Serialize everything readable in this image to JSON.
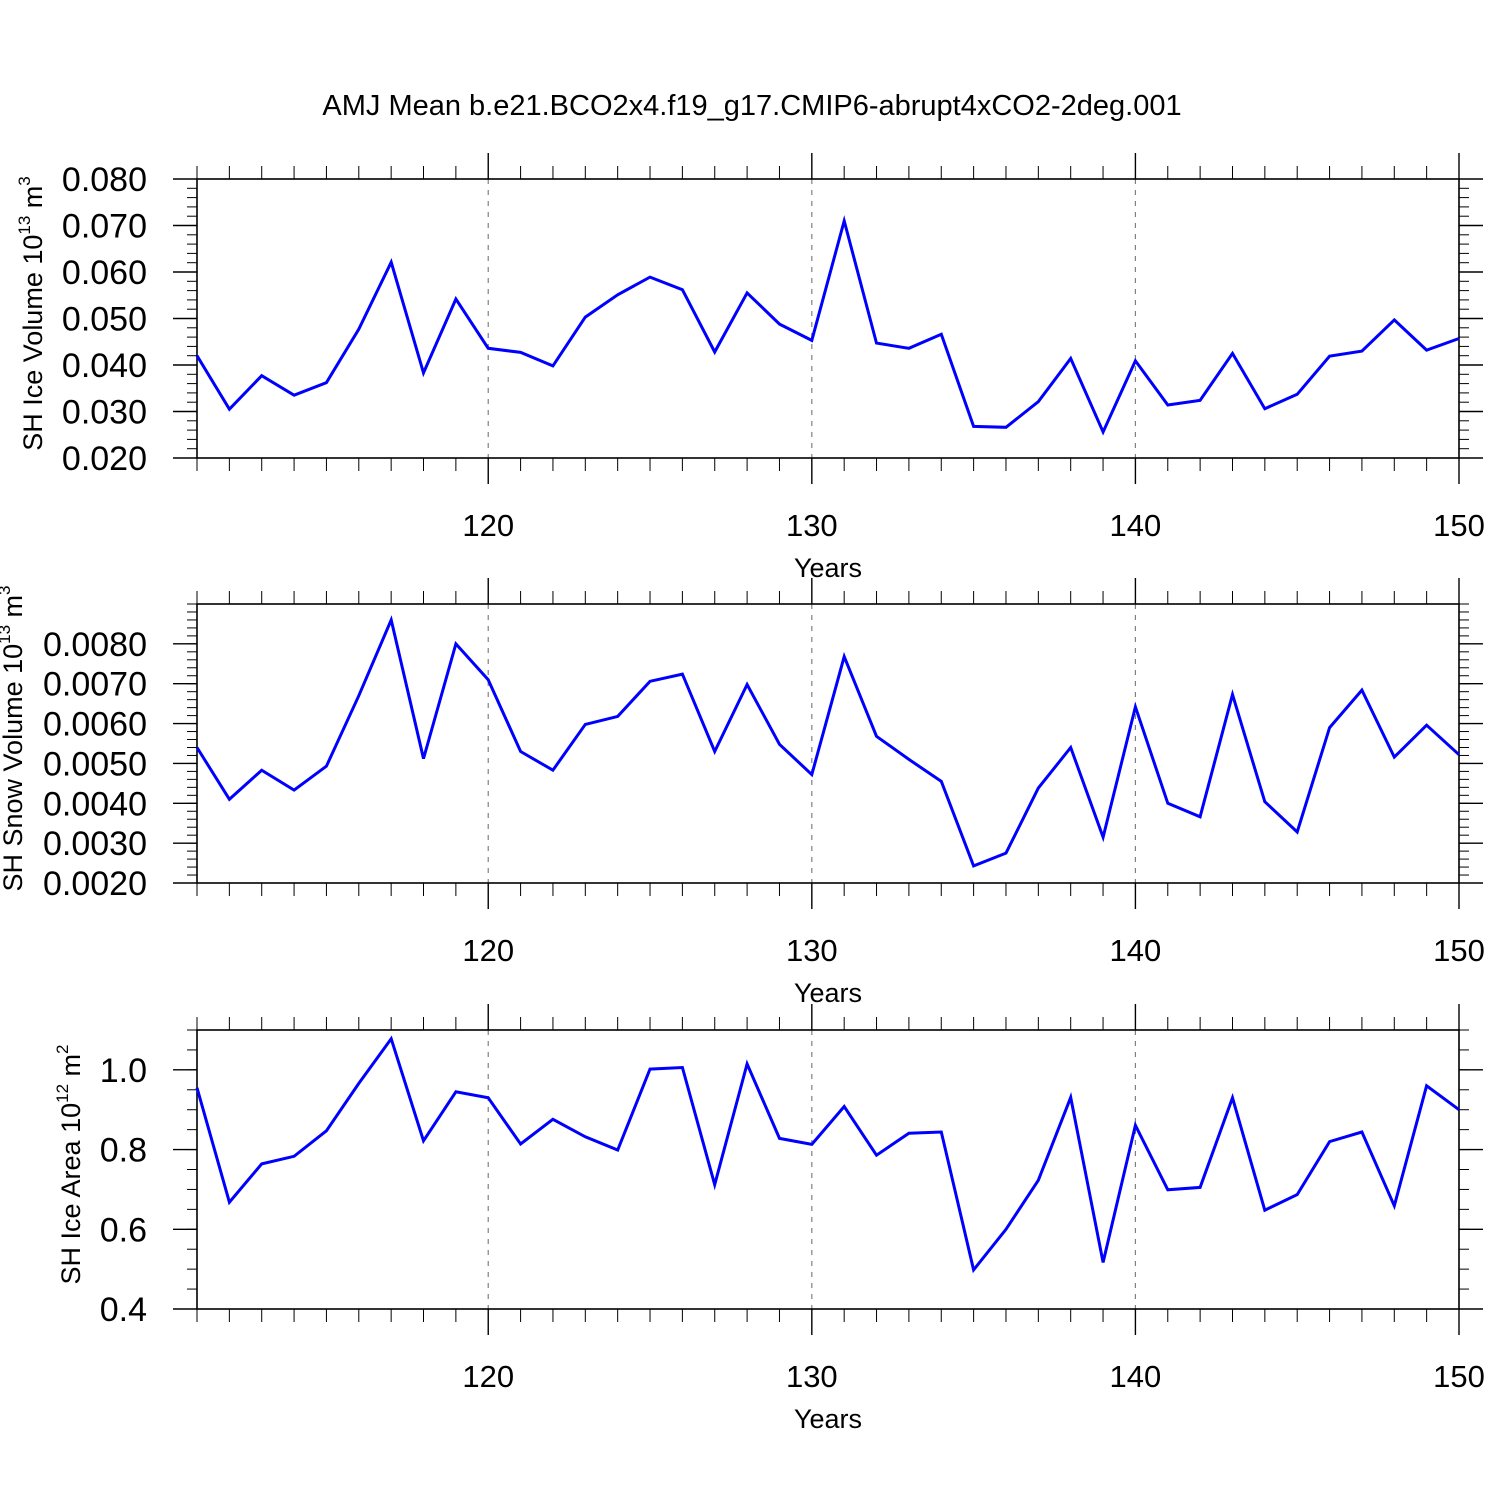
{
  "title": "AMJ Mean b.e21.BCO2x4.f19_g17.CMIP6-abrupt4xCO2-2deg.001",
  "colors": {
    "series": "#0000ff",
    "axes": "#000000",
    "grid": "#808080"
  },
  "chart_data": [
    {
      "type": "line",
      "ylabel_main": "SH Ice Volume 10",
      "ylabel_exp": "13",
      "ylabel_unit": " m",
      "ylabel_unit_exp": "3",
      "xlabel": "Years",
      "xlim": [
        111,
        150
      ],
      "ylim": [
        0.02,
        0.08
      ],
      "yticks": [
        0.02,
        0.03,
        0.04,
        0.05,
        0.06,
        0.07,
        0.08
      ],
      "ytick_labels": [
        "0.020",
        "0.030",
        "0.040",
        "0.050",
        "0.060",
        "0.070",
        "0.080"
      ],
      "yminor_step": 0.002,
      "xticks": [
        120,
        130,
        140,
        150
      ],
      "xtick_labels": [
        "120",
        "130",
        "140",
        "150"
      ],
      "grid_x": [
        120,
        130,
        140
      ],
      "x": [
        111,
        112,
        113,
        114,
        115,
        116,
        117,
        118,
        119,
        120,
        121,
        122,
        123,
        124,
        125,
        126,
        127,
        128,
        129,
        130,
        131,
        132,
        133,
        134,
        135,
        136,
        137,
        138,
        139,
        140,
        141,
        142,
        143,
        144,
        145,
        146,
        147,
        148,
        149,
        150
      ],
      "y": [
        0.042,
        0.0305,
        0.0377,
        0.0335,
        0.0362,
        0.0477,
        0.0621,
        0.0383,
        0.0542,
        0.0436,
        0.0427,
        0.0398,
        0.0503,
        0.0551,
        0.0589,
        0.0562,
        0.0428,
        0.0555,
        0.0488,
        0.0453,
        0.071,
        0.0447,
        0.0436,
        0.0466,
        0.0268,
        0.0266,
        0.0321,
        0.0414,
        0.0256,
        0.0409,
        0.0314,
        0.0324,
        0.0425,
        0.0306,
        0.0337,
        0.0419,
        0.043,
        0.0497,
        0.0432,
        0.0457
      ]
    },
    {
      "type": "line",
      "ylabel_main": "SH Snow Volume 10",
      "ylabel_exp": "13",
      "ylabel_unit": " m",
      "ylabel_unit_exp": "3",
      "xlabel": "Years",
      "xlim": [
        111,
        150
      ],
      "ylim": [
        0.002,
        0.009
      ],
      "yticks": [
        0.002,
        0.003,
        0.004,
        0.005,
        0.006,
        0.007,
        0.008
      ],
      "ytick_labels": [
        "0.0020",
        "0.0030",
        "0.0040",
        "0.0050",
        "0.0060",
        "0.0070",
        "0.0080"
      ],
      "yminor_step": 0.0002,
      "xticks": [
        120,
        130,
        140,
        150
      ],
      "xtick_labels": [
        "120",
        "130",
        "140",
        "150"
      ],
      "grid_x": [
        120,
        130,
        140
      ],
      "x": [
        111,
        112,
        113,
        114,
        115,
        116,
        117,
        118,
        119,
        120,
        121,
        122,
        123,
        124,
        125,
        126,
        127,
        128,
        129,
        130,
        131,
        132,
        133,
        134,
        135,
        136,
        137,
        138,
        139,
        140,
        141,
        142,
        143,
        144,
        145,
        146,
        147,
        148,
        149,
        150
      ],
      "y": [
        0.0054,
        0.0041,
        0.00483,
        0.00433,
        0.00493,
        0.0067,
        0.0086,
        0.00512,
        0.008,
        0.0071,
        0.0053,
        0.00483,
        0.00598,
        0.00618,
        0.00706,
        0.00724,
        0.0053,
        0.00698,
        0.00548,
        0.00472,
        0.00768,
        0.00568,
        0.0051,
        0.00455,
        0.00243,
        0.00275,
        0.00438,
        0.0054,
        0.00315,
        0.00642,
        0.004,
        0.00366,
        0.00673,
        0.00404,
        0.00328,
        0.0059,
        0.00684,
        0.00516,
        0.00596,
        0.00522
      ]
    },
    {
      "type": "line",
      "ylabel_main": "SH Ice Area 10",
      "ylabel_exp": "12",
      "ylabel_unit": " m",
      "ylabel_unit_exp": "2",
      "xlabel": "Years",
      "xlim": [
        111,
        150
      ],
      "ylim": [
        0.4,
        1.1
      ],
      "yticks": [
        0.4,
        0.6,
        0.8,
        1.0
      ],
      "ytick_labels": [
        "0.4",
        "0.6",
        "0.8",
        "1.0"
      ],
      "yminor_step": 0.05,
      "xticks": [
        120,
        130,
        140,
        150
      ],
      "xtick_labels": [
        "120",
        "130",
        "140",
        "150"
      ],
      "grid_x": [
        120,
        130,
        140
      ],
      "x": [
        111,
        112,
        113,
        114,
        115,
        116,
        117,
        118,
        119,
        120,
        121,
        122,
        123,
        124,
        125,
        126,
        127,
        128,
        129,
        130,
        131,
        132,
        133,
        134,
        135,
        136,
        137,
        138,
        139,
        140,
        141,
        142,
        143,
        144,
        145,
        146,
        147,
        148,
        149,
        150
      ],
      "y": [
        0.955,
        0.668,
        0.764,
        0.783,
        0.847,
        0.966,
        1.078,
        0.822,
        0.945,
        0.93,
        0.814,
        0.876,
        0.832,
        0.799,
        1.002,
        1.006,
        0.712,
        1.015,
        0.828,
        0.813,
        0.908,
        0.786,
        0.841,
        0.844,
        0.498,
        0.6,
        0.723,
        0.931,
        0.517,
        0.861,
        0.699,
        0.705,
        0.93,
        0.648,
        0.687,
        0.82,
        0.844,
        0.659,
        0.96,
        0.9
      ]
    }
  ]
}
